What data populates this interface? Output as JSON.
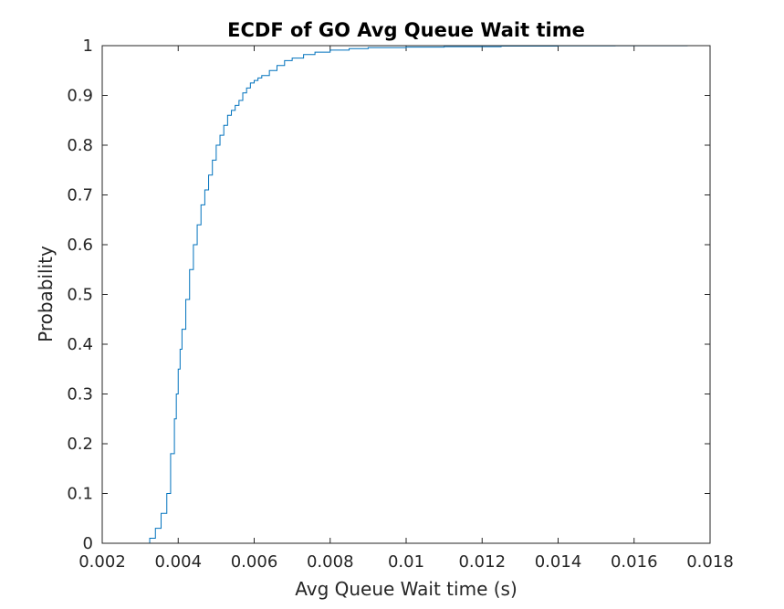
{
  "chart_data": {
    "type": "line",
    "title": "ECDF of GO Avg Queue Wait time",
    "xlabel": "Avg Queue Wait time (s)",
    "ylabel": "Probability",
    "xlim": [
      0.002,
      0.018
    ],
    "ylim": [
      0,
      1
    ],
    "xticks": [
      "0.002",
      "0.004",
      "0.006",
      "0.008",
      "0.01",
      "0.012",
      "0.014",
      "0.016",
      "0.018"
    ],
    "yticks": [
      "0",
      "0.1",
      "0.2",
      "0.3",
      "0.4",
      "0.5",
      "0.6",
      "0.7",
      "0.8",
      "0.9",
      "1"
    ],
    "grid": false,
    "line_color": "#0072BD",
    "series": [
      {
        "x": [
          0.0031,
          0.00325,
          0.0034,
          0.00355,
          0.0037,
          0.0038,
          0.0039,
          0.00395,
          0.004,
          0.00405,
          0.0041,
          0.0042,
          0.0043,
          0.0044,
          0.0045,
          0.0046,
          0.0047,
          0.0048,
          0.0049,
          0.005,
          0.0051,
          0.0052,
          0.0053,
          0.0054,
          0.0055,
          0.0056,
          0.0057,
          0.0058,
          0.0059,
          0.006,
          0.0061,
          0.0062,
          0.0064,
          0.0066,
          0.0068,
          0.007,
          0.0073,
          0.0076,
          0.008,
          0.0085,
          0.009,
          0.01,
          0.011,
          0.0125,
          0.014,
          0.0155,
          0.0174
        ],
        "y": [
          0.0,
          0.01,
          0.03,
          0.06,
          0.1,
          0.18,
          0.25,
          0.3,
          0.35,
          0.39,
          0.43,
          0.49,
          0.55,
          0.6,
          0.64,
          0.68,
          0.71,
          0.74,
          0.77,
          0.8,
          0.82,
          0.84,
          0.86,
          0.87,
          0.88,
          0.89,
          0.905,
          0.915,
          0.925,
          0.93,
          0.935,
          0.94,
          0.95,
          0.96,
          0.97,
          0.975,
          0.982,
          0.987,
          0.991,
          0.994,
          0.996,
          0.997,
          0.998,
          0.999,
          0.9995,
          0.9998,
          1.0
        ]
      }
    ]
  }
}
